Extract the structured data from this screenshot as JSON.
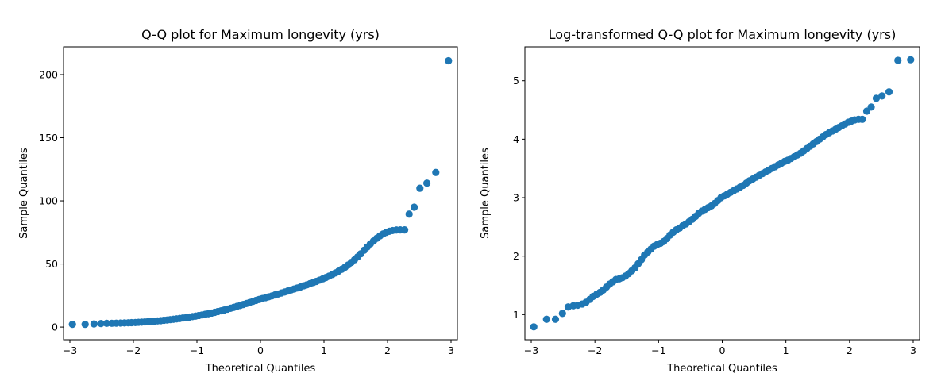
{
  "chart_data": [
    {
      "type": "scatter",
      "title": "Q-Q plot for Maximum longevity (yrs)",
      "xlabel": "Theoretical Quantiles",
      "ylabel": "Sample Quantiles",
      "xlim": [
        -3.1,
        3.1
      ],
      "ylim": [
        -10,
        222
      ],
      "xticks": [
        -3,
        -2,
        -1,
        0,
        1,
        2,
        3
      ],
      "xtick_labels": [
        "−3",
        "−2",
        "−1",
        "0",
        "1",
        "2",
        "3"
      ],
      "yticks": [
        0,
        50,
        100,
        150,
        200
      ],
      "ytick_labels": [
        "0",
        "50",
        "100",
        "150",
        "200"
      ],
      "grid": false,
      "marker_color": "#1f77b4",
      "x": [
        -2.96,
        -2.76,
        -2.62,
        -2.51,
        -2.42,
        -2.34,
        -2.27,
        -2.2,
        -2.14,
        -2.08,
        -2.03,
        -1.97,
        -1.92,
        -1.87,
        -1.82,
        -1.77,
        -1.72,
        -1.67,
        -1.62,
        -1.57,
        -1.52,
        -1.47,
        -1.42,
        -1.37,
        -1.32,
        -1.27,
        -1.22,
        -1.17,
        -1.12,
        -1.07,
        -1.02,
        -0.97,
        -0.92,
        -0.87,
        -0.82,
        -0.77,
        -0.72,
        -0.67,
        -0.62,
        -0.57,
        -0.52,
        -0.47,
        -0.42,
        -0.37,
        -0.32,
        -0.27,
        -0.22,
        -0.17,
        -0.12,
        -0.07,
        -0.02,
        0.03,
        0.08,
        0.13,
        0.18,
        0.23,
        0.28,
        0.33,
        0.38,
        0.43,
        0.48,
        0.53,
        0.58,
        0.63,
        0.68,
        0.73,
        0.78,
        0.83,
        0.88,
        0.93,
        0.98,
        1.03,
        1.08,
        1.13,
        1.18,
        1.23,
        1.28,
        1.33,
        1.38,
        1.43,
        1.48,
        1.53,
        1.58,
        1.63,
        1.68,
        1.73,
        1.78,
        1.83,
        1.88,
        1.93,
        1.98,
        2.03,
        2.08,
        2.14,
        2.2,
        2.27,
        2.34,
        2.42,
        2.51,
        2.62,
        2.76,
        2.96
      ],
      "y": [
        2.2,
        2.2,
        2.5,
        2.8,
        3.0,
        3.0,
        3.1,
        3.2,
        3.3,
        3.4,
        3.5,
        3.6,
        3.8,
        3.9,
        4.1,
        4.3,
        4.5,
        4.7,
        4.9,
        5.1,
        5.4,
        5.6,
        5.9,
        6.2,
        6.5,
        6.8,
        7.2,
        7.5,
        7.9,
        8.3,
        8.7,
        9.2,
        9.6,
        10.1,
        10.6,
        11.1,
        11.7,
        12.3,
        12.9,
        13.5,
        14.2,
        14.9,
        15.6,
        16.4,
        17.1,
        17.9,
        18.7,
        19.5,
        20.3,
        21.1,
        21.9,
        22.6,
        23.3,
        24.0,
        24.7,
        25.5,
        26.2,
        27.0,
        27.8,
        28.6,
        29.4,
        30.2,
        31.0,
        31.8,
        32.7,
        33.5,
        34.4,
        35.3,
        36.2,
        37.2,
        38.2,
        39.3,
        40.4,
        41.6,
        42.9,
        44.3,
        45.8,
        47.4,
        49.2,
        51.2,
        53.3,
        55.6,
        58.1,
        60.8,
        63.4,
        65.9,
        68.2,
        70.3,
        72.2,
        73.8,
        75.0,
        75.9,
        76.5,
        76.9,
        77.0,
        77.0,
        89.5,
        95.0,
        110.0,
        114.0,
        122.5,
        211.0
      ]
    },
    {
      "type": "scatter",
      "title": "Log-transformed Q-Q plot for Maximum longevity (yrs)",
      "xlabel": "Theoretical Quantiles",
      "ylabel": "Sample Quantiles",
      "xlim": [
        -3.1,
        3.1
      ],
      "ylim": [
        0.57,
        5.58
      ],
      "xticks": [
        -3,
        -2,
        -1,
        0,
        1,
        2,
        3
      ],
      "xtick_labels": [
        "−3",
        "−2",
        "−1",
        "0",
        "1",
        "2",
        "3"
      ],
      "yticks": [
        1,
        2,
        3,
        4,
        5
      ],
      "ytick_labels": [
        "1",
        "2",
        "3",
        "4",
        "5"
      ],
      "grid": false,
      "marker_color": "#1f77b4",
      "x": [
        -2.96,
        -2.76,
        -2.62,
        -2.51,
        -2.42,
        -2.34,
        -2.27,
        -2.2,
        -2.14,
        -2.08,
        -2.03,
        -1.97,
        -1.92,
        -1.87,
        -1.82,
        -1.77,
        -1.72,
        -1.67,
        -1.62,
        -1.57,
        -1.52,
        -1.47,
        -1.42,
        -1.37,
        -1.32,
        -1.27,
        -1.22,
        -1.17,
        -1.12,
        -1.07,
        -1.02,
        -0.97,
        -0.92,
        -0.87,
        -0.82,
        -0.77,
        -0.72,
        -0.67,
        -0.62,
        -0.57,
        -0.52,
        -0.47,
        -0.42,
        -0.37,
        -0.32,
        -0.27,
        -0.22,
        -0.17,
        -0.12,
        -0.07,
        -0.02,
        0.03,
        0.08,
        0.13,
        0.18,
        0.23,
        0.28,
        0.33,
        0.38,
        0.43,
        0.48,
        0.53,
        0.58,
        0.63,
        0.68,
        0.73,
        0.78,
        0.83,
        0.88,
        0.93,
        0.98,
        1.03,
        1.08,
        1.13,
        1.18,
        1.23,
        1.28,
        1.33,
        1.38,
        1.43,
        1.48,
        1.53,
        1.58,
        1.63,
        1.68,
        1.73,
        1.78,
        1.83,
        1.88,
        1.93,
        1.98,
        2.03,
        2.08,
        2.14,
        2.2,
        2.27,
        2.34,
        2.42,
        2.51,
        2.62,
        2.76,
        2.96
      ],
      "y": [
        0.79,
        0.92,
        0.92,
        1.02,
        1.13,
        1.15,
        1.16,
        1.18,
        1.21,
        1.26,
        1.31,
        1.35,
        1.38,
        1.42,
        1.47,
        1.52,
        1.56,
        1.6,
        1.61,
        1.63,
        1.66,
        1.7,
        1.75,
        1.8,
        1.87,
        1.94,
        2.02,
        2.07,
        2.12,
        2.17,
        2.2,
        2.22,
        2.25,
        2.3,
        2.36,
        2.41,
        2.45,
        2.48,
        2.52,
        2.55,
        2.59,
        2.63,
        2.68,
        2.73,
        2.77,
        2.8,
        2.83,
        2.86,
        2.9,
        2.95,
        3.0,
        3.03,
        3.06,
        3.09,
        3.12,
        3.15,
        3.18,
        3.21,
        3.25,
        3.29,
        3.32,
        3.35,
        3.38,
        3.41,
        3.44,
        3.47,
        3.5,
        3.53,
        3.56,
        3.59,
        3.62,
        3.64,
        3.67,
        3.7,
        3.73,
        3.76,
        3.8,
        3.84,
        3.88,
        3.92,
        3.96,
        4.0,
        4.04,
        4.08,
        4.11,
        4.14,
        4.17,
        4.2,
        4.23,
        4.26,
        4.29,
        4.31,
        4.33,
        4.34,
        4.34,
        4.48,
        4.55,
        4.7,
        4.74,
        4.81,
        5.35,
        5.36
      ]
    }
  ]
}
